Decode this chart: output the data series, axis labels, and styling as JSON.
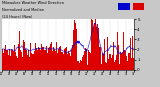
{
  "title_line1": "Milwaukee Weather Wind Direction",
  "title_line2": "Normalized and Median",
  "title_line3": "(24 Hours) (New)",
  "background_color": "#c8c8c8",
  "plot_bg_color": "#ffffff",
  "bar_color": "#dd0000",
  "median_color": "#0000cc",
  "ylim": [
    0,
    5
  ],
  "num_points": 288,
  "legend_blue_color": "#0000cc",
  "legend_red_color": "#dd0000",
  "fig_width": 1.6,
  "fig_height": 0.87,
  "dpi": 100
}
